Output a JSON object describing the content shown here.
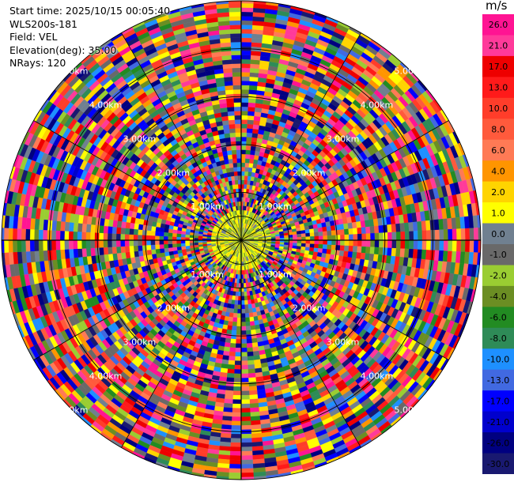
{
  "info": {
    "start_time": "Start time: 2025/10/15 00:05:40",
    "instrument": "WLS200s-181",
    "field": "Field: VEL",
    "elevation": "Elevation(deg): 35.00",
    "nrays": "NRays: 120"
  },
  "colorbar": {
    "unit": "m/s",
    "ticks": [
      "26.0",
      "21.0",
      "17.0",
      "13.0",
      "10.0",
      "8.0",
      "6.0",
      "4.0",
      "2.0",
      "1.0",
      "0.0",
      "-1.0",
      "-2.0",
      "-4.0",
      "-6.0",
      "-8.0",
      "-10.0",
      "-13.0",
      "-17.0",
      "-21.0",
      "-26.0",
      "-30.0"
    ],
    "colors": [
      "#ff1493",
      "#ff3a9a",
      "#ee0000",
      "#ff1a1a",
      "#ff3d2a",
      "#ff5a3c",
      "#ff7a55",
      "#ff9500",
      "#ffd400",
      "#ffff00",
      "#708090",
      "#696969",
      "#9acd32",
      "#6b8e23",
      "#228b22",
      "#2e8b57",
      "#1e90ff",
      "#4169e1",
      "#0000ff",
      "#0000cd",
      "#000080",
      "#191970"
    ]
  },
  "chart_data": {
    "type": "heatmap",
    "projection": "polar (PPI)",
    "field": "VEL",
    "n_rays": 120,
    "elevation_deg": 35.0,
    "value_range": [
      -30.0,
      26.0
    ],
    "range_ring_labels": [
      [
        "1.00km",
        "1.00km",
        "1.00km",
        "1.00km"
      ],
      [
        "2.00km",
        "2.00km",
        "2.00km",
        "2.00km"
      ],
      [
        "3.00km",
        "3.00km",
        "3.00km",
        "3.00km"
      ],
      [
        "4.00km",
        "4.00km",
        "4.00km",
        "4.00km"
      ],
      [
        "5.00km",
        "5.00km",
        "5.00km",
        "5.00km"
      ]
    ],
    "max_range_km": 5.0,
    "gate_km": 0.09,
    "near_field_km": 0.5
  }
}
